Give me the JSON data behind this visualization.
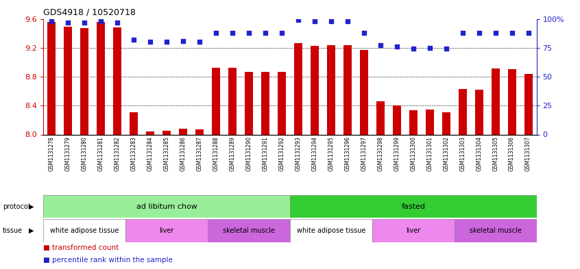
{
  "title": "GDS4918 / 10520718",
  "samples": [
    "GSM1131278",
    "GSM1131279",
    "GSM1131280",
    "GSM1131281",
    "GSM1131282",
    "GSM1131283",
    "GSM1131284",
    "GSM1131285",
    "GSM1131286",
    "GSM1131287",
    "GSM1131288",
    "GSM1131289",
    "GSM1131290",
    "GSM1131291",
    "GSM1131292",
    "GSM1131293",
    "GSM1131294",
    "GSM1131295",
    "GSM1131296",
    "GSM1131297",
    "GSM1131298",
    "GSM1131299",
    "GSM1131300",
    "GSM1131301",
    "GSM1131302",
    "GSM1131303",
    "GSM1131304",
    "GSM1131305",
    "GSM1131306",
    "GSM1131307"
  ],
  "bar_values": [
    9.56,
    9.49,
    9.47,
    9.56,
    9.48,
    8.31,
    8.04,
    8.05,
    8.08,
    8.07,
    8.92,
    8.92,
    8.87,
    8.87,
    8.87,
    9.26,
    9.23,
    9.24,
    9.24,
    9.17,
    8.46,
    8.4,
    8.34,
    8.35,
    8.31,
    8.63,
    8.62,
    8.91,
    8.9,
    8.84
  ],
  "percentile_values": [
    98,
    97,
    97,
    98,
    97,
    82,
    80,
    80,
    81,
    80,
    88,
    88,
    88,
    88,
    88,
    99,
    98,
    98,
    98,
    88,
    77,
    76,
    74,
    75,
    74,
    88,
    88,
    88,
    88,
    88
  ],
  "bar_color": "#cc0000",
  "dot_color": "#2222cc",
  "ylim_left": [
    8.0,
    9.6
  ],
  "ylim_right": [
    0,
    100
  ],
  "yticks_left": [
    8.0,
    8.4,
    8.8,
    9.2,
    9.6
  ],
  "yticks_right": [
    0,
    25,
    50,
    75,
    100
  ],
  "ytick_labels_right": [
    "0",
    "25",
    "50",
    "75",
    "100%"
  ],
  "protocol_bands": [
    {
      "label": "ad libitum chow",
      "start": 0,
      "end": 15,
      "color": "#99ee99"
    },
    {
      "label": "fasted",
      "start": 15,
      "end": 30,
      "color": "#33cc33"
    }
  ],
  "tissue_bands": [
    {
      "label": "white adipose tissue",
      "start": 0,
      "end": 5,
      "color": "#ffffff"
    },
    {
      "label": "liver",
      "start": 5,
      "end": 10,
      "color": "#ee88ee"
    },
    {
      "label": "skeletal muscle",
      "start": 10,
      "end": 15,
      "color": "#cc66dd"
    },
    {
      "label": "white adipose tissue",
      "start": 15,
      "end": 20,
      "color": "#ffffff"
    },
    {
      "label": "liver",
      "start": 20,
      "end": 25,
      "color": "#ee88ee"
    },
    {
      "label": "skeletal muscle",
      "start": 25,
      "end": 30,
      "color": "#cc66dd"
    }
  ],
  "background_color": "#ffffff",
  "bar_width": 0.5,
  "dot_size": 25
}
